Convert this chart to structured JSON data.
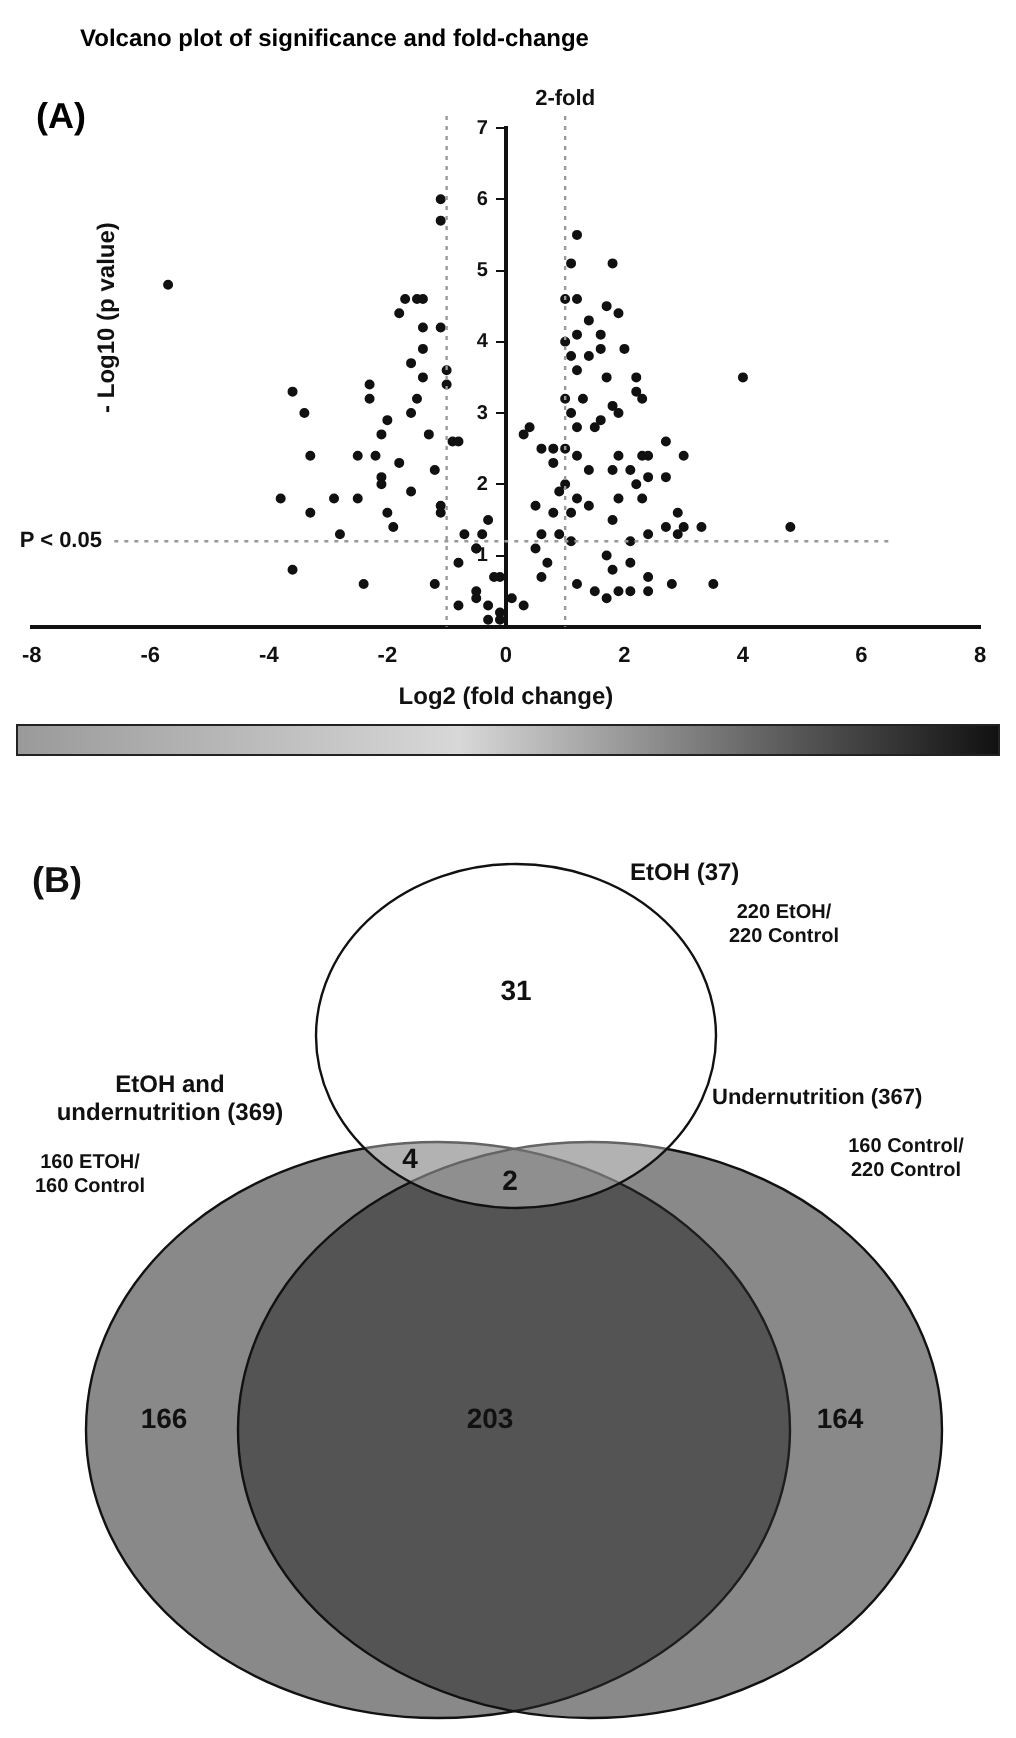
{
  "chart_data": [
    {
      "type": "scatter",
      "title": "Volcano plot of significance and fold-change",
      "xlabel": "Log2 (fold change)",
      "ylabel": "- Log10 (p value)",
      "annotations": [
        "(A)"
      ],
      "color": "#111111",
      "marker": "circle",
      "grid": false,
      "legend": false,
      "xlim": [
        -8,
        8
      ],
      "xticks": [
        -8,
        -6,
        -4,
        -2,
        0,
        2,
        4,
        6,
        8
      ],
      "ylim": [
        0,
        7
      ],
      "yticks": [
        1,
        2,
        3,
        4,
        5,
        6,
        7
      ],
      "ref_lines": [
        {
          "axis": "x",
          "value": -1,
          "color": "#999999",
          "line_style": "dotted"
        },
        {
          "axis": "x",
          "value": 1,
          "label": "2-fold",
          "color": "#999999",
          "line_style": "dotted"
        },
        {
          "axis": "y",
          "value": 1.2,
          "label": "P < 0.05",
          "color": "#999999",
          "line_style": "dotted"
        }
      ],
      "x": [
        -5.7,
        -3.6,
        -3.4,
        -3.3,
        -3.8,
        -3.3,
        -2.9,
        -2.8,
        -3.6,
        -2.5,
        -2.5,
        -2.4,
        -2.3,
        -2.3,
        -2.2,
        -2.1,
        -2.1,
        -2.0,
        -2.0,
        -1.8,
        -1.8,
        -1.7,
        -1.6,
        -1.5,
        -1.4,
        -1.5,
        -1.4,
        -1.4,
        -1.3,
        -1.2,
        -1.1,
        -1.1,
        -1.1,
        -1.1,
        -1.0,
        -1.0,
        -1.2,
        -1.9,
        -2.1,
        -1.6,
        -1.4,
        -1.6,
        -1.1,
        -0.9,
        -0.5,
        -0.5,
        -0.3,
        -0.2,
        -0.7,
        -0.8,
        -0.8,
        1.2,
        1.1,
        1.8,
        1.0,
        1.2,
        1.7,
        1.9,
        1.4,
        1.6,
        1.0,
        1.2,
        2.0,
        1.1,
        1.4,
        1.6,
        1.2,
        1.7,
        2.2,
        4.0,
        2.2,
        2.3,
        1.0,
        1.3,
        1.8,
        1.9,
        1.1,
        1.6,
        1.5,
        0.4,
        0.3,
        1.2,
        0.8,
        0.6,
        1.0,
        2.7,
        3.0,
        1.9,
        2.3,
        2.4,
        0.8,
        1.2,
        1.4,
        2.1,
        1.8,
        2.7,
        2.2,
        1.0,
        2.4,
        0.9,
        1.2,
        1.9,
        2.3,
        0.5,
        0.8,
        1.1,
        1.4,
        2.9,
        1.8,
        2.4,
        2.7,
        2.9,
        3.0,
        3.3,
        4.8,
        2.1,
        0.6,
        0.9,
        1.1,
        1.7,
        2.1,
        1.8,
        2.4,
        2.8,
        3.5,
        1.2,
        1.5,
        1.7,
        1.9,
        2.1,
        2.4,
        -0.1,
        0.1,
        -0.1,
        0.3,
        -0.4,
        -0.3,
        -0.5,
        -0.8,
        0.5,
        0.7,
        -0.1,
        -0.5,
        -0.3,
        0.6
      ],
      "values": [
        4.8,
        3.3,
        3.0,
        2.4,
        1.8,
        1.6,
        1.8,
        1.3,
        0.8,
        2.4,
        1.8,
        0.6,
        3.4,
        3.2,
        2.4,
        2.1,
        2.7,
        2.9,
        1.6,
        2.3,
        4.4,
        4.6,
        3.7,
        4.6,
        4.6,
        3.2,
        3.9,
        4.2,
        2.7,
        2.2,
        4.2,
        5.7,
        6.0,
        1.7,
        3.6,
        3.4,
        0.6,
        1.4,
        2.0,
        3.0,
        3.5,
        1.9,
        1.6,
        2.6,
        1.1,
        0.5,
        0.3,
        0.7,
        1.3,
        0.9,
        0.3,
        5.5,
        5.1,
        5.1,
        4.6,
        4.6,
        4.5,
        4.4,
        4.3,
        4.1,
        4.0,
        4.1,
        3.9,
        3.8,
        3.8,
        3.9,
        3.6,
        3.5,
        3.5,
        3.5,
        3.3,
        3.2,
        3.2,
        3.2,
        3.1,
        3.0,
        3.0,
        2.9,
        2.8,
        2.8,
        2.7,
        2.8,
        2.5,
        2.5,
        2.5,
        2.6,
        2.4,
        2.4,
        2.4,
        2.4,
        2.3,
        2.4,
        2.2,
        2.2,
        2.2,
        2.1,
        2.0,
        2.0,
        2.1,
        1.9,
        1.8,
        1.8,
        1.8,
        1.7,
        1.6,
        1.6,
        1.7,
        1.6,
        1.5,
        1.3,
        1.4,
        1.3,
        1.4,
        1.4,
        1.4,
        1.2,
        1.3,
        1.3,
        1.2,
        1.0,
        0.9,
        0.8,
        0.7,
        0.6,
        0.6,
        0.6,
        0.5,
        0.4,
        0.5,
        0.5,
        0.5,
        0.7,
        0.4,
        0.2,
        0.3,
        1.3,
        1.5,
        1.1,
        2.6,
        1.1,
        0.9,
        0.1,
        0.4,
        0.1,
        0.7
      ]
    },
    {
      "type": "other",
      "data_labels": true,
      "values": [
        31,
        4,
        2,
        166,
        203,
        164
      ],
      "annotations": [
        "(B)",
        "EtOH (37)",
        "220 EtOH/\n220 Control",
        "EtOH and\nundernutrition (369)",
        "160 ETOH/\n160 Control",
        "Undernutrition (367)",
        "160 Control/\n220 Control"
      ]
    }
  ]
}
